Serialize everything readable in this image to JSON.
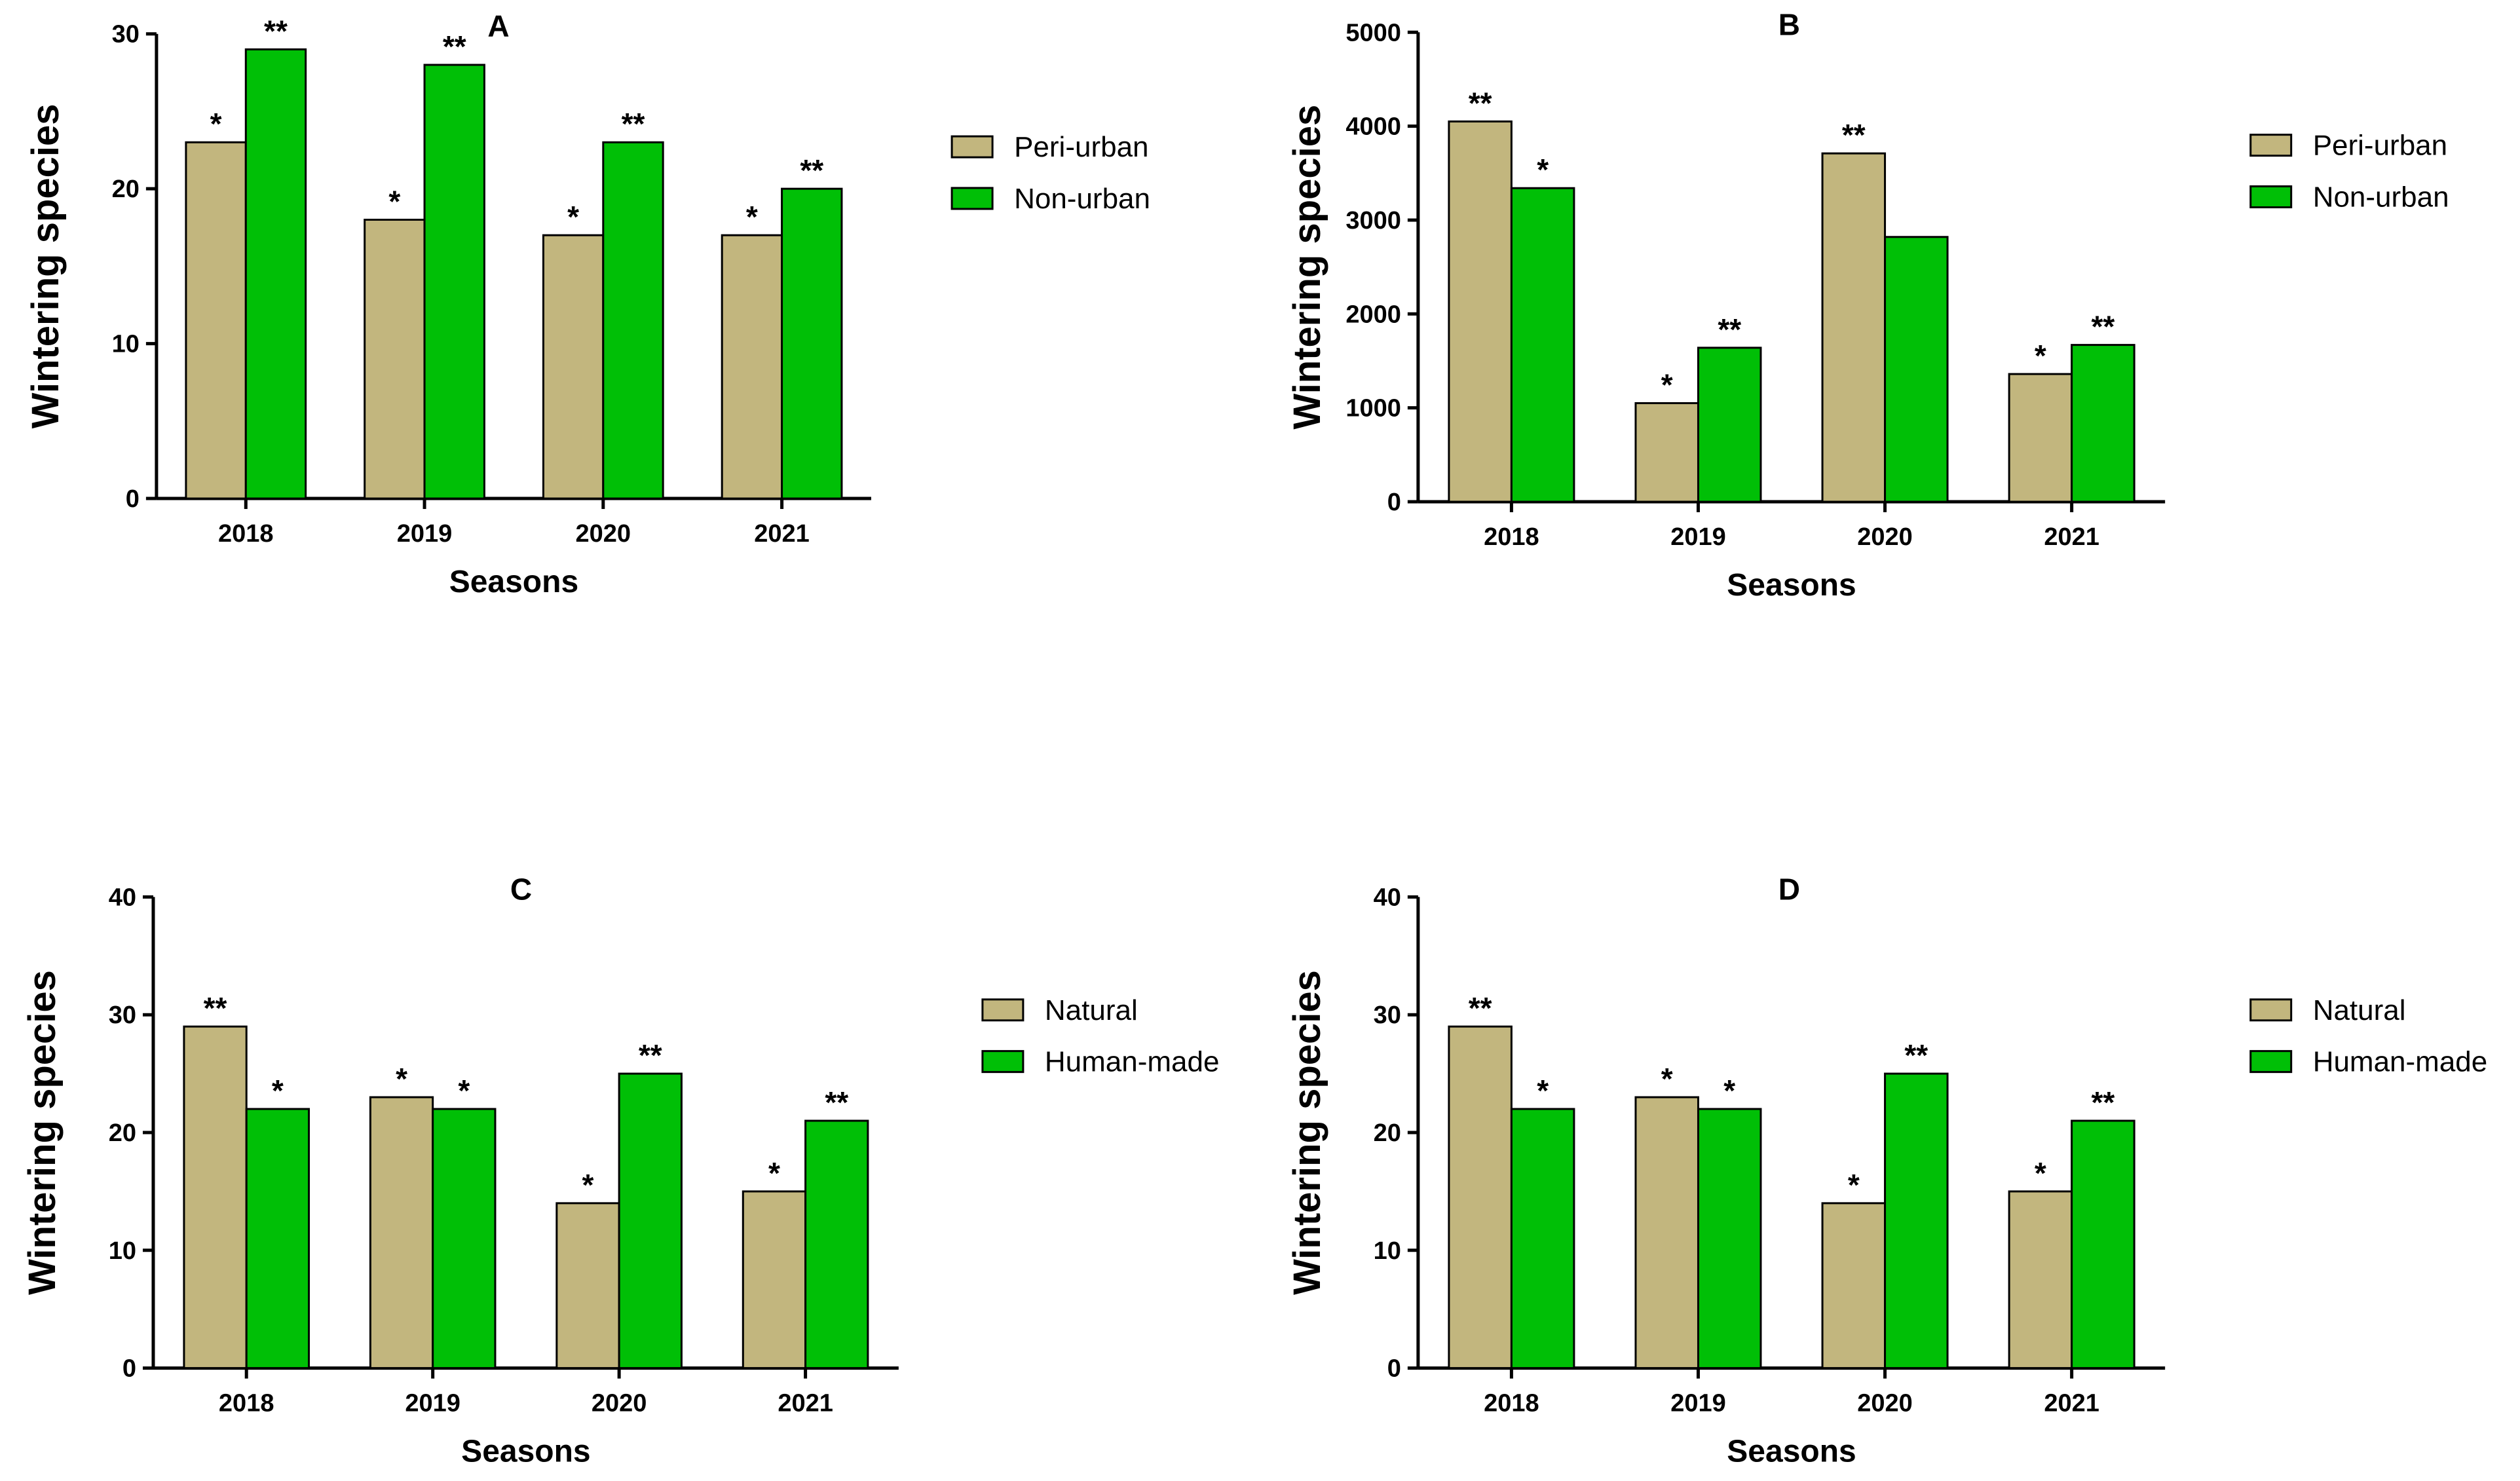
{
  "colors": {
    "primary": "#c2b67e",
    "secondary": "#00bf06"
  },
  "chart_data": [
    {
      "type": "bar",
      "title": "A",
      "xlabel": "Seasons",
      "ylabel": "Wintering species",
      "categories": [
        "2018",
        "2019",
        "2020",
        "2021"
      ],
      "ylim": [
        0,
        30
      ],
      "yticks": [
        "0",
        "10",
        "20",
        "30"
      ],
      "legend_position": "right",
      "series": [
        {
          "name": "Peri-urban",
          "values": [
            23,
            18,
            17,
            17
          ],
          "marks": [
            "*",
            "*",
            "*",
            "*"
          ]
        },
        {
          "name": "Non-urban",
          "values": [
            29,
            28,
            23,
            20
          ],
          "marks": [
            "**",
            "**",
            "**",
            "**"
          ]
        }
      ]
    },
    {
      "type": "bar",
      "title": "B",
      "xlabel": "Seasons",
      "ylabel": "Wintering species",
      "categories": [
        "2018",
        "2019",
        "2020",
        "2021"
      ],
      "ylim": [
        0,
        5000
      ],
      "yticks": [
        "0",
        "1000",
        "2000",
        "3000",
        "4000",
        "5000"
      ],
      "legend_position": "right",
      "series": [
        {
          "name": "Peri-urban",
          "values": [
            4050,
            1050,
            3710,
            1360
          ],
          "marks": [
            "**",
            "*",
            "**",
            "*"
          ]
        },
        {
          "name": "Non-urban",
          "values": [
            3340,
            1640,
            2820,
            1670
          ],
          "marks": [
            "*",
            "**",
            "",
            "**"
          ]
        }
      ]
    },
    {
      "type": "bar",
      "title": "C",
      "xlabel": "Seasons",
      "ylabel": "Wintering species",
      "categories": [
        "2018",
        "2019",
        "2020",
        "2021"
      ],
      "ylim": [
        0,
        40
      ],
      "yticks": [
        "0",
        "10",
        "20",
        "30",
        "40"
      ],
      "legend_position": "right",
      "series": [
        {
          "name": "Natural",
          "values": [
            29,
            23,
            14,
            15
          ],
          "marks": [
            "**",
            "*",
            "*",
            "*"
          ]
        },
        {
          "name": "Human-made",
          "values": [
            22,
            22,
            25,
            21
          ],
          "marks": [
            "*",
            "*",
            "**",
            "**"
          ]
        }
      ]
    },
    {
      "type": "bar",
      "title": "D",
      "xlabel": "Seasons",
      "ylabel": "Wintering species",
      "categories": [
        "2018",
        "2019",
        "2020",
        "2021"
      ],
      "ylim": [
        0,
        40
      ],
      "yticks": [
        "0",
        "10",
        "20",
        "30",
        "40"
      ],
      "legend_position": "right",
      "series": [
        {
          "name": "Natural",
          "values": [
            29,
            23,
            14,
            15
          ],
          "marks": [
            "**",
            "*",
            "*",
            "*"
          ]
        },
        {
          "name": "Human-made",
          "values": [
            22,
            22,
            25,
            21
          ],
          "marks": [
            "*",
            "*",
            "**",
            "**"
          ]
        }
      ]
    }
  ]
}
